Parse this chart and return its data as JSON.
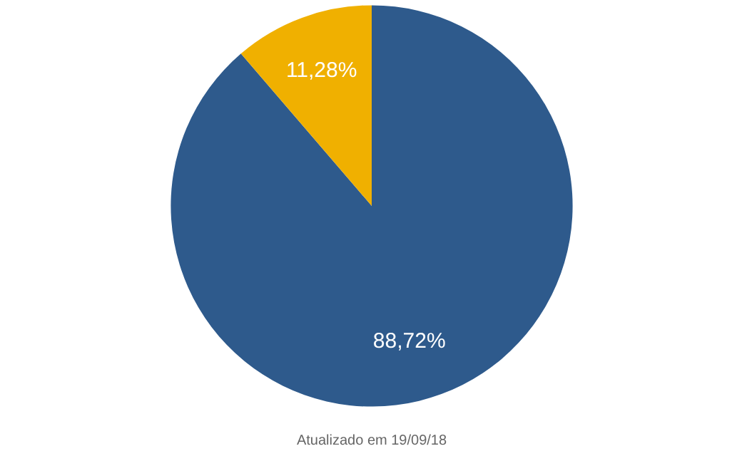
{
  "chart_data": {
    "type": "pie",
    "categories": [
      null,
      null
    ],
    "values": [
      88.72,
      11.28
    ],
    "colors": [
      "#2e5a8c",
      "#f0b000"
    ],
    "value_labels": [
      "88,72%",
      "11,28%"
    ],
    "annotations": [
      "Atualizado em 19/09/18"
    ]
  }
}
